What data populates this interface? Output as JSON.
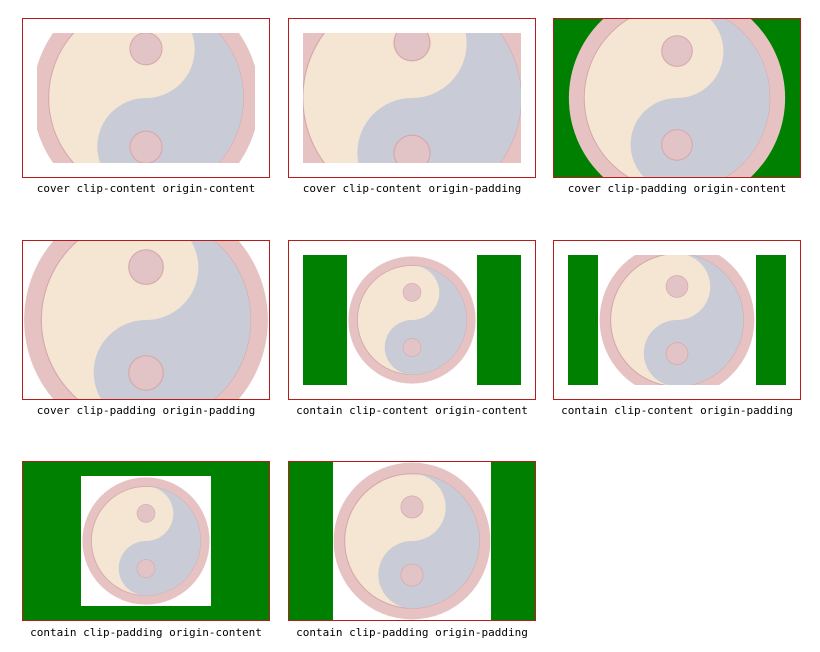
{
  "colors": {
    "border": "#b71c1c",
    "green": "#008000",
    "ring": "#e6c3c2",
    "yin": "#c9cbd6",
    "yang": "#f5e6d3",
    "dot": "#e2c4c6",
    "dot_stroke": "#d6a8ab"
  },
  "tiles": [
    {
      "caption": "cover clip-content origin-content"
    },
    {
      "caption": "cover clip-content origin-padding"
    },
    {
      "caption": "cover clip-padding origin-content"
    },
    {
      "caption": "cover clip-padding origin-padding"
    },
    {
      "caption": "contain clip-content origin-content"
    },
    {
      "caption": "contain clip-content origin-padding"
    },
    {
      "caption": "contain clip-padding origin-content"
    },
    {
      "caption": "contain clip-padding origin-padding"
    }
  ]
}
